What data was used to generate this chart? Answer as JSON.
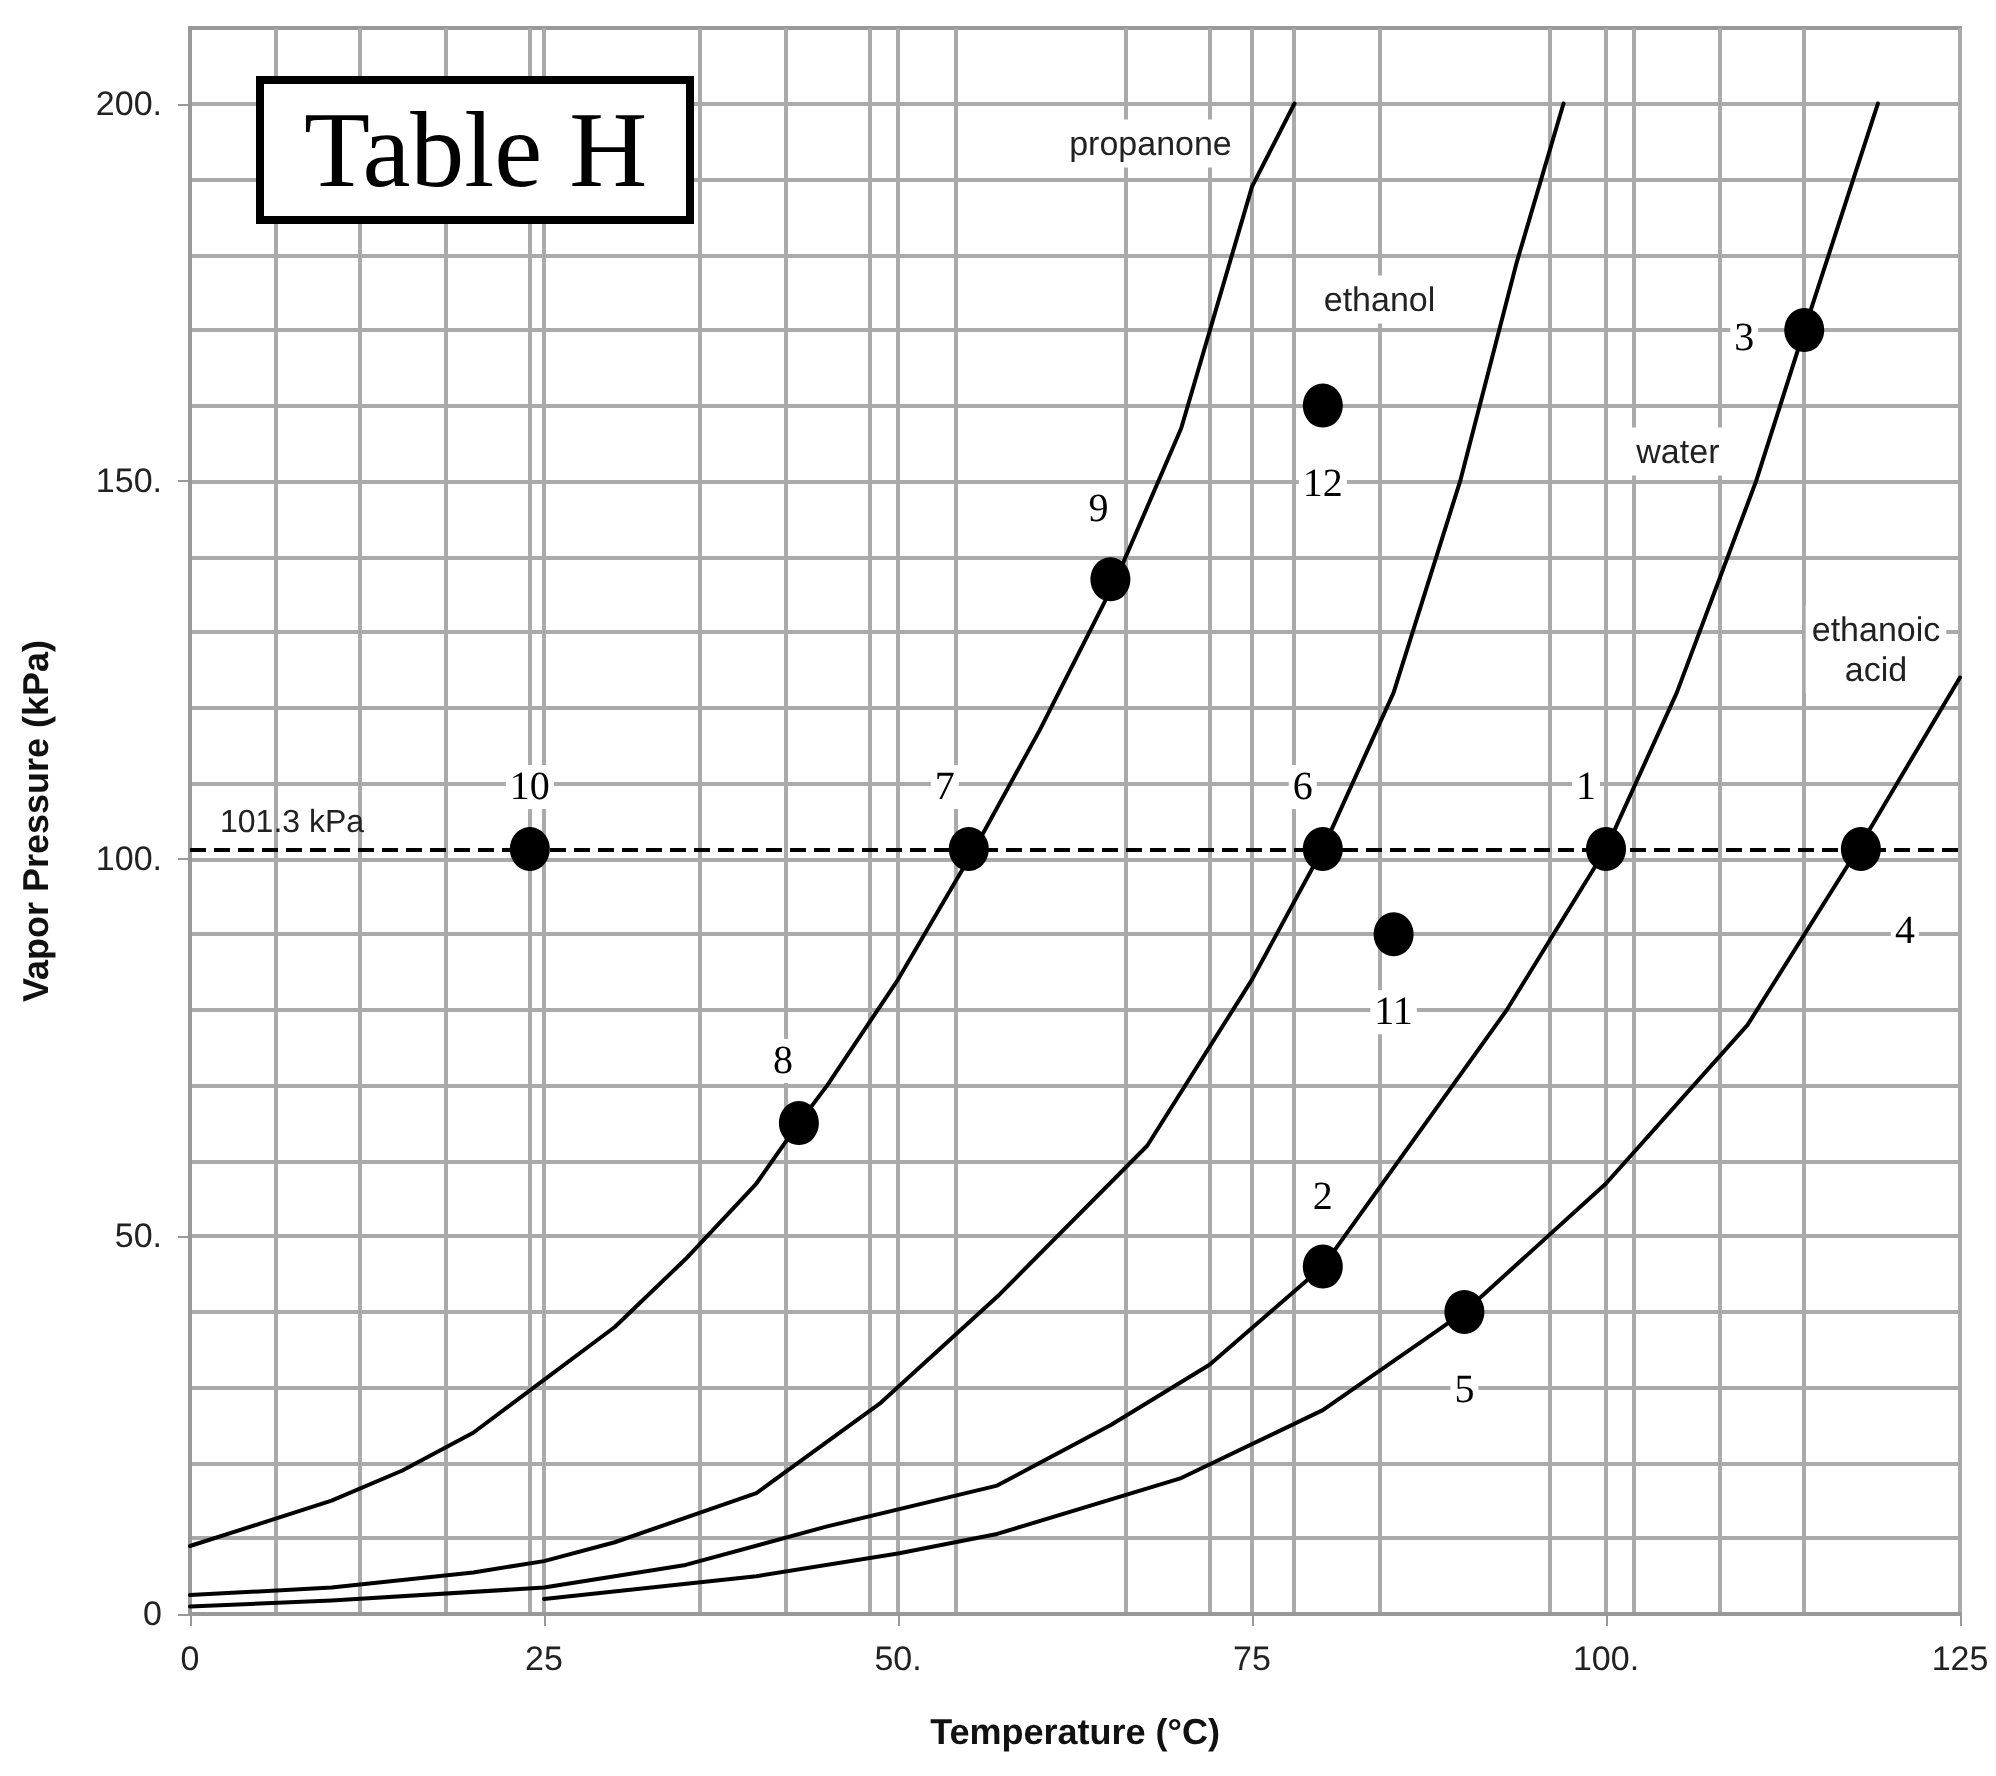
{
  "chart_data": {
    "type": "line",
    "title": "Table H",
    "xlabel": "Temperature (°C)",
    "ylabel": "Vapor Pressure (kPa)",
    "xlim": [
      0,
      125
    ],
    "xticks": [
      0,
      25,
      {
        "value": 50,
        "label": "50."
      },
      75,
      {
        "value": 100,
        "label": "100."
      },
      125
    ],
    "ylim": [
      0,
      210
    ],
    "yticks": [
      0,
      {
        "value": 50,
        "label": "50."
      },
      {
        "value": 100,
        "label": "100."
      },
      {
        "value": 150,
        "label": "150."
      },
      {
        "value": 200,
        "label": "200."
      }
    ],
    "grid": true,
    "legend": false,
    "marker": "none",
    "line_style": "solid",
    "series": [
      {
        "name": "propanone",
        "color": "#000000",
        "x": [
          0,
          5,
          10,
          15,
          20,
          25,
          30,
          35,
          40,
          43,
          45,
          50,
          55.4,
          60,
          65.4,
          70,
          75,
          78
        ],
        "values": [
          9,
          12,
          15,
          19,
          24,
          31,
          38,
          47,
          57,
          65,
          70,
          84,
          101.3,
          117,
          137,
          157,
          189,
          200
        ]
      },
      {
        "name": "ethanol",
        "color": "#000000",
        "x": [
          0,
          10,
          20,
          25,
          30,
          40,
          48.8,
          57,
          67.6,
          75,
          80,
          85,
          89.7,
          93.7,
          97
        ],
        "values": [
          2.5,
          3.5,
          5.5,
          7,
          9.5,
          16,
          28,
          42,
          62,
          84,
          101.3,
          122,
          150,
          179,
          200
        ]
      },
      {
        "name": "water",
        "color": "#000000",
        "x": [
          0,
          10,
          25,
          35,
          45,
          57,
          65,
          72,
          80,
          93,
          100,
          105,
          110.6,
          114,
          119.2
        ],
        "values": [
          1,
          1.8,
          3.5,
          6.5,
          11.6,
          17,
          25,
          33,
          46,
          80,
          101.3,
          122,
          150,
          170,
          200
        ]
      },
      {
        "name": "ethanoic\nacid",
        "color": "#000000",
        "x": [
          25,
          40,
          50,
          57,
          70,
          80,
          90,
          100,
          110,
          117.8,
          125
        ],
        "values": [
          2,
          5,
          8,
          10.6,
          18,
          27,
          40,
          57,
          78,
          101.3,
          124
        ]
      },
      {
        "type": "scatter",
        "name": "1",
        "marker": "circle",
        "color": "#000000",
        "x": [
          100
        ],
        "values": [
          101.3
        ]
      },
      {
        "type": "scatter",
        "name": "2",
        "marker": "circle",
        "color": "#000000",
        "x": [
          80
        ],
        "values": [
          46
        ]
      },
      {
        "type": "scatter",
        "name": "3",
        "marker": "circle",
        "color": "#000000",
        "x": [
          114
        ],
        "values": [
          170
        ]
      },
      {
        "type": "scatter",
        "name": "4",
        "marker": "circle",
        "color": "#000000",
        "x": [
          118
        ],
        "values": [
          101.3
        ]
      },
      {
        "type": "scatter",
        "name": "5",
        "marker": "circle",
        "color": "#000000",
        "x": [
          90
        ],
        "values": [
          40
        ]
      },
      {
        "type": "scatter",
        "name": "6",
        "marker": "circle",
        "color": "#000000",
        "x": [
          80
        ],
        "values": [
          101.3
        ]
      },
      {
        "type": "scatter",
        "name": "7",
        "marker": "circle",
        "color": "#000000",
        "x": [
          55
        ],
        "values": [
          101.3
        ]
      },
      {
        "type": "scatter",
        "name": "8",
        "marker": "circle",
        "color": "#000000",
        "x": [
          43
        ],
        "values": [
          65
        ]
      },
      {
        "type": "scatter",
        "name": "9",
        "marker": "circle",
        "color": "#000000",
        "x": [
          65
        ],
        "values": [
          137
        ]
      },
      {
        "type": "scatter",
        "name": "10",
        "marker": "circle",
        "color": "#000000",
        "x": [
          24
        ],
        "values": [
          101.3
        ]
      },
      {
        "type": "scatter",
        "name": "11",
        "marker": "circle",
        "color": "#000000",
        "x": [
          85
        ],
        "values": [
          90
        ]
      },
      {
        "type": "scatter",
        "name": "12",
        "marker": "circle",
        "color": "#000000",
        "x": [
          80
        ],
        "values": [
          160
        ]
      }
    ],
    "ref_lines": [
      {
        "axis": "y",
        "value": 101.3,
        "label": "101.3 kPa",
        "line_style": "dashed"
      }
    ]
  }
}
